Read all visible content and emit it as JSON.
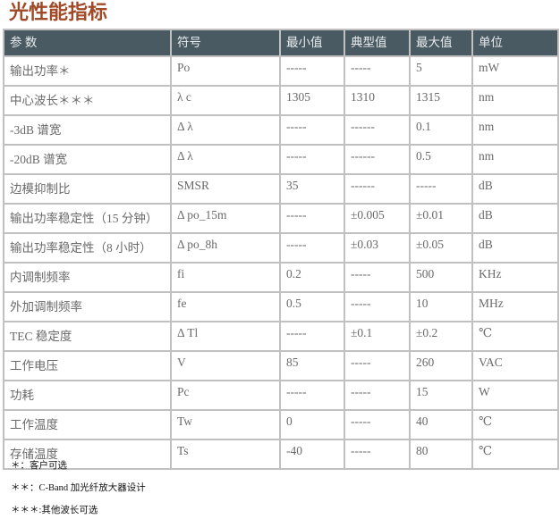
{
  "overlay_title": "光性能指标",
  "headers": [
    "参  数",
    "符号",
    "最小值",
    "典型值",
    "最大值",
    "单位"
  ],
  "rows": [
    [
      "输出功率＊",
      "Po",
      "-----",
      "-----",
      "5",
      "mW"
    ],
    [
      "中心波长＊＊＊",
      "λ c",
      "1305",
      "1310",
      "1315",
      "nm"
    ],
    [
      "-3dB 谱宽",
      "Δ λ",
      "-----",
      "------",
      "0.1",
      "nm"
    ],
    [
      "-20dB 谱宽",
      "Δ λ",
      "-----",
      "------",
      "0.5",
      "nm"
    ],
    [
      "边模抑制比",
      "SMSR",
      "35",
      "------",
      "-----",
      "dB"
    ],
    [
      "输出功率稳定性（15 分钟）",
      "Δ po_15m",
      "-----",
      "±0.005",
      "±0.01",
      "dB"
    ],
    [
      "输出功率稳定性（8 小时）",
      "Δ po_8h",
      "-----",
      "±0.03",
      "±0.05",
      "dB"
    ],
    [
      "内调制频率",
      "fi",
      "0.2",
      "-----",
      "500",
      "KHz"
    ],
    [
      "外加调制频率",
      "fe",
      "0.5",
      "-----",
      "10",
      "MHz"
    ],
    [
      "TEC 稳定度",
      "Δ Tl",
      "-----",
      "±0.1",
      "±0.2",
      "℃"
    ],
    [
      "工作电压",
      "V",
      "85",
      "-----",
      "260",
      "VAC"
    ],
    [
      "功耗",
      "Pc",
      "-----",
      "-----",
      "15",
      "W"
    ],
    [
      "工作温度",
      "Tw",
      "0",
      "-----",
      "40",
      "℃"
    ],
    [
      "存储温度",
      "Ts",
      "-40",
      "-----",
      "80",
      "℃"
    ]
  ],
  "notes": [
    "＊：客户可选",
    "＊＊：C-Band 加光纤放大器设计",
    "＊＊＊:其他波长可选"
  ],
  "colors": {
    "header_bg": "#4a5a62",
    "text": "#6a6a6a",
    "border": "#c0c0c0"
  }
}
